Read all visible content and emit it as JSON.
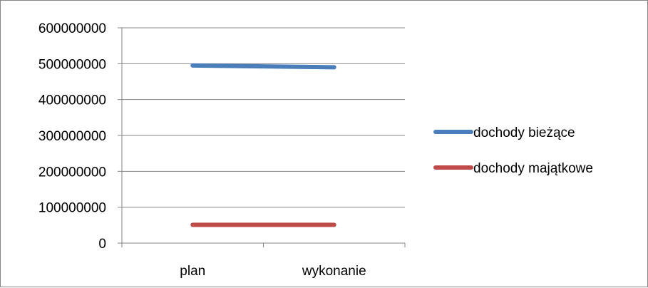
{
  "chart_data": {
    "type": "line",
    "categories": [
      "plan",
      "wykonanie"
    ],
    "series": [
      {
        "name": "dochody bieżące",
        "values": [
          495000000,
          490000000
        ],
        "color": "#4A7EBB"
      },
      {
        "name": "dochody majątkowe",
        "values": [
          51000000,
          51000000
        ],
        "color": "#BE4B48"
      }
    ],
    "ylim": [
      0,
      600000000
    ],
    "yticks": [
      0,
      100000000,
      200000000,
      300000000,
      400000000,
      500000000,
      600000000
    ],
    "ytick_labels": [
      "0",
      "100000000",
      "200000000",
      "300000000",
      "400000000",
      "500000000",
      "600000000"
    ],
    "grid": true,
    "legend": "right",
    "title": "",
    "xlabel": "",
    "ylabel": ""
  }
}
